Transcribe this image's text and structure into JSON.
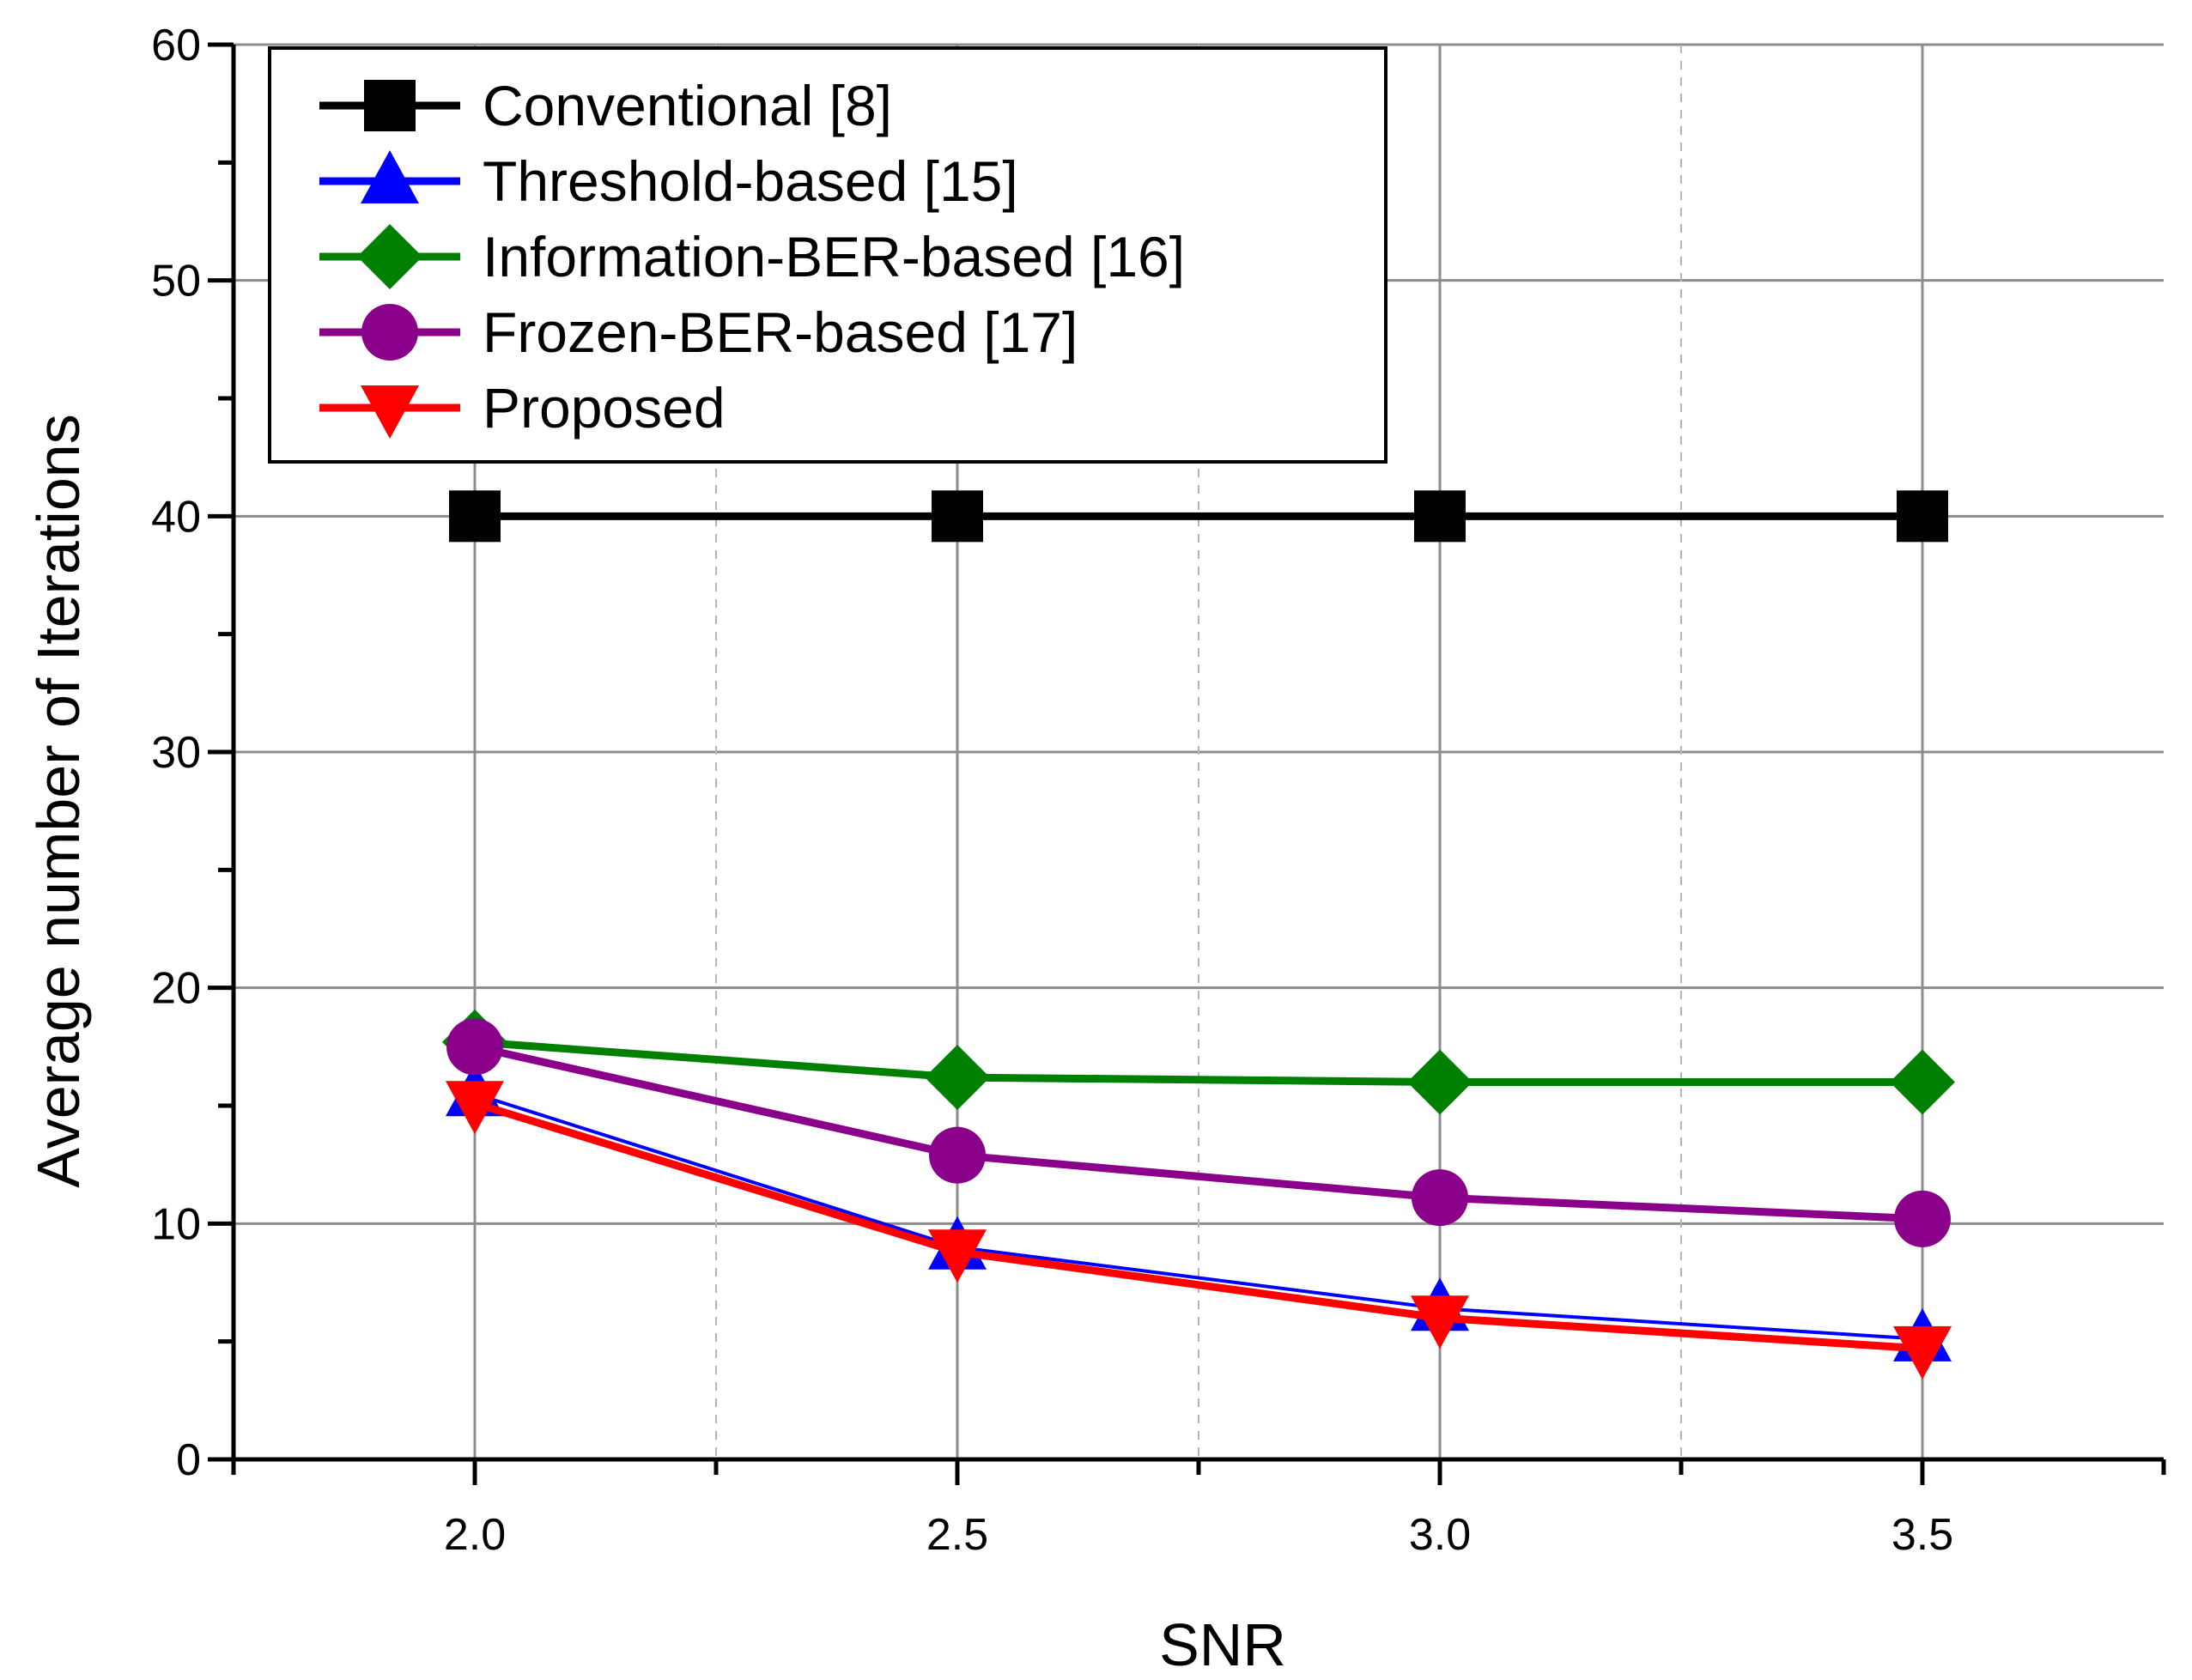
{
  "chart_data": {
    "type": "line",
    "title": "",
    "xlabel": "SNR",
    "ylabel": "Average number of Iterations",
    "xlim": [
      1.75,
      3.75
    ],
    "ylim": [
      0,
      60
    ],
    "x": [
      2.0,
      2.5,
      3.0,
      3.5
    ],
    "xtick_labels": [
      "2.0",
      "2.5",
      "3.0",
      "3.5"
    ],
    "ytick_labels": [
      "0",
      "10",
      "20",
      "30",
      "40",
      "50",
      "60"
    ],
    "grid": true,
    "legend_position": "top-left",
    "series": [
      {
        "name": "Conventional [8]",
        "color": "#000000",
        "marker": "square",
        "values": [
          40,
          40,
          40,
          40
        ]
      },
      {
        "name": "Threshold-based [15]",
        "color": "#0000ff",
        "marker": "triangle-up",
        "values": [
          15.5,
          9.0,
          6.4,
          5.1
        ]
      },
      {
        "name": "Information-BER-based [16]",
        "color": "#008000",
        "marker": "diamond",
        "values": [
          17.7,
          16.2,
          16.0,
          16.0
        ]
      },
      {
        "name": "Frozen-BER-based [17]",
        "color": "#8b008b",
        "marker": "circle",
        "values": [
          17.5,
          12.9,
          11.1,
          10.2
        ]
      },
      {
        "name": "Proposed",
        "color": "#ff0000",
        "marker": "triangle-down",
        "values": [
          15.1,
          8.8,
          6.0,
          4.7
        ]
      }
    ]
  }
}
